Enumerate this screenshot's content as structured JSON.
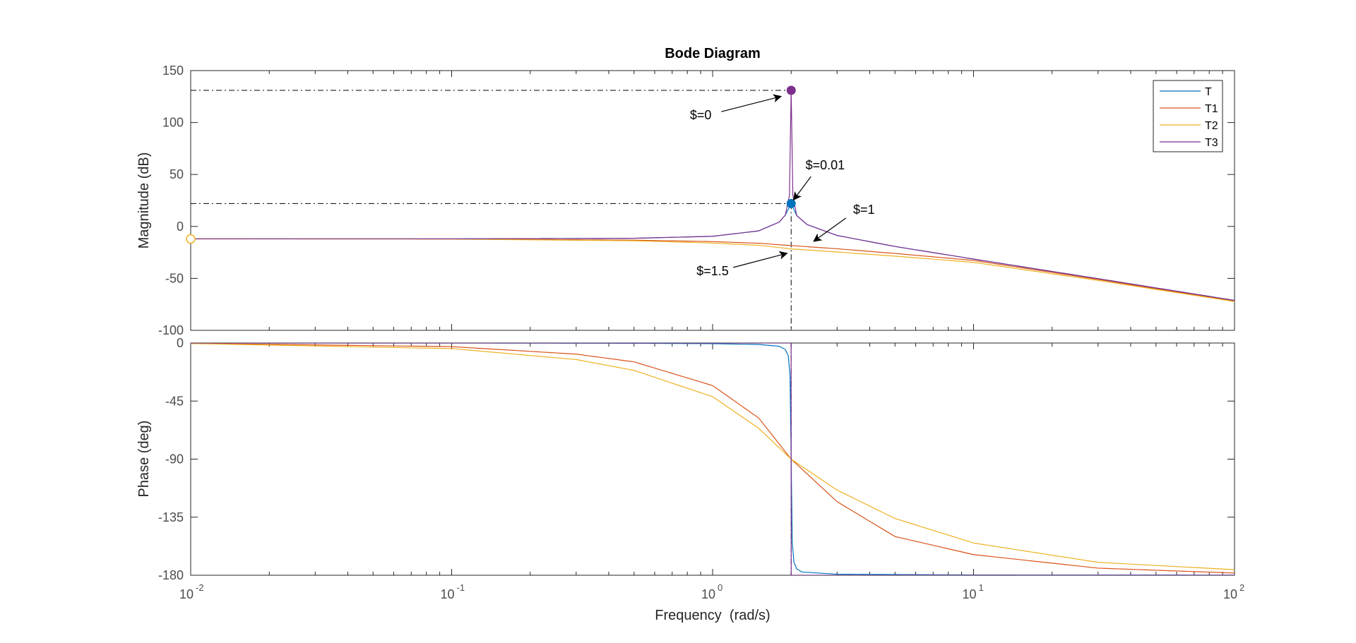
{
  "chart_data": [
    {
      "type": "line",
      "title": "Bode Diagram",
      "ylabel": "Magnitude (dB)",
      "xscale": "log",
      "xlim": [
        0.01,
        100
      ],
      "ylim": [
        -100,
        150
      ],
      "yticks": [
        "150",
        "100",
        "50",
        "0",
        "-50",
        "-100"
      ],
      "grid": false,
      "legend_position": "top-right",
      "series": [
        {
          "name": "T",
          "color": "#0072BD",
          "x": [
            0.01,
            0.1,
            0.5,
            1,
            1.5,
            1.8,
            1.9,
            2,
            2.1,
            2.3,
            3,
            5,
            10,
            30,
            100
          ],
          "values": [
            -12,
            -12,
            -11.4,
            -9.5,
            -4.3,
            4.2,
            11,
            22,
            10.5,
            1.8,
            -8.7,
            -19.3,
            -31.4,
            -50.3,
            -71.2
          ]
        },
        {
          "name": "T1",
          "color": "#D95319",
          "x": [
            0.01,
            0.1,
            0.5,
            1,
            1.5,
            2,
            3,
            5,
            10,
            30,
            100
          ],
          "values": [
            -12,
            -12,
            -13.2,
            -14.6,
            -16.2,
            -18.4,
            -21.5,
            -26,
            -32.7,
            -51,
            -72
          ]
        },
        {
          "name": "T2",
          "color": "#EDB120",
          "x": [
            0.01,
            0.1,
            0.5,
            1,
            1.5,
            2,
            3,
            5,
            10,
            30,
            100
          ],
          "values": [
            -12,
            -12.2,
            -13.8,
            -16,
            -18.2,
            -21.6,
            -24.6,
            -28.6,
            -34.6,
            -52,
            -72.3
          ]
        },
        {
          "name": "T3",
          "color": "#7E2F8E",
          "x": [
            0.01,
            0.1,
            0.5,
            1,
            1.5,
            1.8,
            1.9,
            1.97,
            2,
            2.03,
            2.1,
            2.3,
            3,
            5,
            10,
            30,
            100
          ],
          "values": [
            -12,
            -12,
            -11.4,
            -9.5,
            -4.3,
            4.2,
            11,
            30,
            131,
            30,
            10.5,
            1.8,
            -8.7,
            -19.3,
            -31.4,
            -50.3,
            -71.2
          ]
        }
      ],
      "markers": [
        {
          "x": 2,
          "y": 131,
          "color": "#7E2F8E"
        },
        {
          "x": 2,
          "y": 22,
          "color": "#0072BD"
        },
        {
          "x": 0.01,
          "y": -12,
          "color": "#EDB120",
          "hollow": true
        }
      ],
      "reference_lines": [
        {
          "type": "horizontal",
          "y": 131,
          "x_from": 0.01,
          "x_to": 2
        },
        {
          "type": "horizontal",
          "y": 22,
          "x_from": 0.01,
          "x_to": 2
        },
        {
          "type": "vertical",
          "x": 2
        }
      ],
      "annotations": [
        {
          "text": "$=0",
          "text_x": 0.9,
          "text_y": 103,
          "arrow_to_x": 1.82,
          "arrow_to_y": 125
        },
        {
          "text": "$=0.01",
          "text_x": 2.7,
          "text_y": 55,
          "arrow_to_x": 2.05,
          "arrow_to_y": 26
        },
        {
          "text": "$=1",
          "text_x": 3.8,
          "text_y": 12,
          "arrow_to_x": 2.45,
          "arrow_to_y": -14
        },
        {
          "text": "$=1.5",
          "text_x": 1.0,
          "text_y": -47,
          "arrow_to_x": 1.92,
          "arrow_to_y": -26
        }
      ]
    },
    {
      "type": "line",
      "ylabel": "Phase (deg)",
      "xlabel": "Frequency  (rad/s)",
      "xscale": "log",
      "xlim": [
        0.01,
        100
      ],
      "ylim": [
        -180,
        0
      ],
      "xticks": [
        {
          "base": "10",
          "exp": "-2"
        },
        {
          "base": "10",
          "exp": "-1"
        },
        {
          "base": "10",
          "exp": "0"
        },
        {
          "base": "10",
          "exp": "1"
        },
        {
          "base": "10",
          "exp": "2"
        }
      ],
      "yticks": [
        "0",
        "-45",
        "-90",
        "-135",
        "-180"
      ],
      "grid": false,
      "series": [
        {
          "name": "T",
          "color": "#0072BD",
          "x": [
            0.01,
            0.1,
            0.5,
            1,
            1.5,
            1.8,
            1.9,
            1.95,
            1.98,
            2,
            2.02,
            2.05,
            2.1,
            2.2,
            3,
            10,
            100
          ],
          "values": [
            0,
            0,
            -0.2,
            -0.5,
            -1.1,
            -2.5,
            -5,
            -10,
            -25,
            -90,
            -155,
            -170,
            -175,
            -177.5,
            -179.2,
            -179.8,
            -179.9
          ]
        },
        {
          "name": "T1",
          "color": "#D95319",
          "x": [
            0.01,
            0.1,
            0.3,
            0.5,
            1,
            1.5,
            2,
            3,
            5,
            10,
            30,
            100
          ],
          "values": [
            -0.2,
            -2.8,
            -8.6,
            -14.6,
            -33,
            -58,
            -90,
            -123,
            -150,
            -164,
            -174.5,
            -178.3
          ]
        },
        {
          "name": "T2",
          "color": "#EDB120",
          "x": [
            0.01,
            0.1,
            0.3,
            0.5,
            1,
            1.5,
            2,
            3,
            5,
            10,
            30,
            100
          ],
          "values": [
            -0.4,
            -4.3,
            -12.8,
            -21.2,
            -41.6,
            -66,
            -90,
            -114,
            -136,
            -155,
            -170,
            -175.7
          ]
        },
        {
          "name": "T3",
          "color": "#7E2F8E",
          "x": [
            0.01,
            1.999,
            1.999,
            2.001,
            2.001,
            100
          ],
          "values": [
            0,
            0,
            0,
            -180,
            -180,
            -180
          ]
        }
      ]
    }
  ]
}
